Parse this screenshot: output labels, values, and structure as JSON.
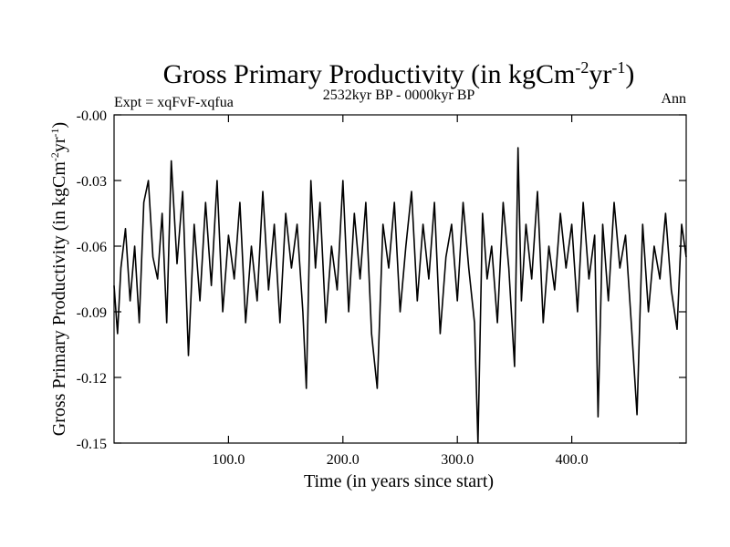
{
  "chart_data": {
    "type": "line",
    "title": "Gross Primary Productivity (in kgCm",
    "title_exp1": "-2",
    "title_mid": "yr",
    "title_exp2": "-1",
    "title_end": ")",
    "subtitle_left": "Expt = xqFvF-xqfua",
    "subtitle_center": "2532kyr BP - 0000kyr BP",
    "subtitle_right": "Ann",
    "xlabel": "Time (in years since start)",
    "ylabel": "Gross Primary Productivity (in kgCm",
    "ylabel_exp1": "-2",
    "ylabel_mid": "yr",
    "ylabel_exp2": "-1",
    "ylabel_end": ")",
    "xlim": [
      0,
      500
    ],
    "ylim": [
      -0.15,
      0.0
    ],
    "x_ticks": [
      100,
      200,
      300,
      400
    ],
    "x_tick_labels": [
      "100.0",
      "200.0",
      "300.0",
      "400.0"
    ],
    "y_ticks": [
      0.0,
      -0.03,
      -0.06,
      -0.09,
      -0.12,
      -0.15
    ],
    "y_tick_labels": [
      "-0.00",
      "-0.03",
      "-0.06",
      "-0.09",
      "-0.12",
      "-0.15"
    ],
    "series": [
      {
        "name": "Gross Primary Productivity",
        "color": "#000000",
        "x": [
          0,
          3,
          6,
          10,
          14,
          18,
          22,
          26,
          30,
          34,
          38,
          42,
          46,
          50,
          55,
          60,
          65,
          70,
          75,
          80,
          85,
          90,
          95,
          100,
          105,
          110,
          115,
          120,
          125,
          130,
          135,
          140,
          145,
          150,
          155,
          160,
          165,
          168,
          172,
          176,
          180,
          185,
          190,
          195,
          200,
          205,
          210,
          215,
          220,
          225,
          230,
          235,
          240,
          245,
          250,
          255,
          260,
          265,
          270,
          275,
          280,
          285,
          290,
          295,
          300,
          305,
          310,
          315,
          318,
          322,
          326,
          330,
          335,
          340,
          345,
          350,
          353,
          356,
          360,
          365,
          370,
          375,
          380,
          385,
          390,
          395,
          400,
          405,
          410,
          415,
          420,
          423,
          427,
          432,
          437,
          442,
          447,
          452,
          457,
          462,
          467,
          472,
          477,
          482,
          487,
          492,
          496,
          500
        ],
        "values": [
          -0.078,
          -0.1,
          -0.07,
          -0.052,
          -0.085,
          -0.06,
          -0.095,
          -0.04,
          -0.03,
          -0.065,
          -0.075,
          -0.045,
          -0.095,
          -0.021,
          -0.068,
          -0.035,
          -0.11,
          -0.05,
          -0.085,
          -0.04,
          -0.078,
          -0.03,
          -0.09,
          -0.055,
          -0.075,
          -0.04,
          -0.095,
          -0.06,
          -0.085,
          -0.035,
          -0.08,
          -0.05,
          -0.095,
          -0.045,
          -0.07,
          -0.05,
          -0.09,
          -0.125,
          -0.03,
          -0.07,
          -0.04,
          -0.095,
          -0.06,
          -0.08,
          -0.03,
          -0.09,
          -0.045,
          -0.075,
          -0.04,
          -0.1,
          -0.125,
          -0.05,
          -0.07,
          -0.04,
          -0.09,
          -0.06,
          -0.035,
          -0.085,
          -0.05,
          -0.075,
          -0.04,
          -0.1,
          -0.065,
          -0.05,
          -0.085,
          -0.04,
          -0.07,
          -0.095,
          -0.15,
          -0.045,
          -0.075,
          -0.06,
          -0.095,
          -0.04,
          -0.07,
          -0.115,
          -0.015,
          -0.085,
          -0.05,
          -0.075,
          -0.035,
          -0.095,
          -0.06,
          -0.08,
          -0.045,
          -0.07,
          -0.05,
          -0.09,
          -0.04,
          -0.075,
          -0.055,
          -0.138,
          -0.05,
          -0.085,
          -0.04,
          -0.07,
          -0.055,
          -0.095,
          -0.137,
          -0.05,
          -0.09,
          -0.06,
          -0.075,
          -0.045,
          -0.08,
          -0.098,
          -0.05,
          -0.065
        ]
      }
    ]
  }
}
